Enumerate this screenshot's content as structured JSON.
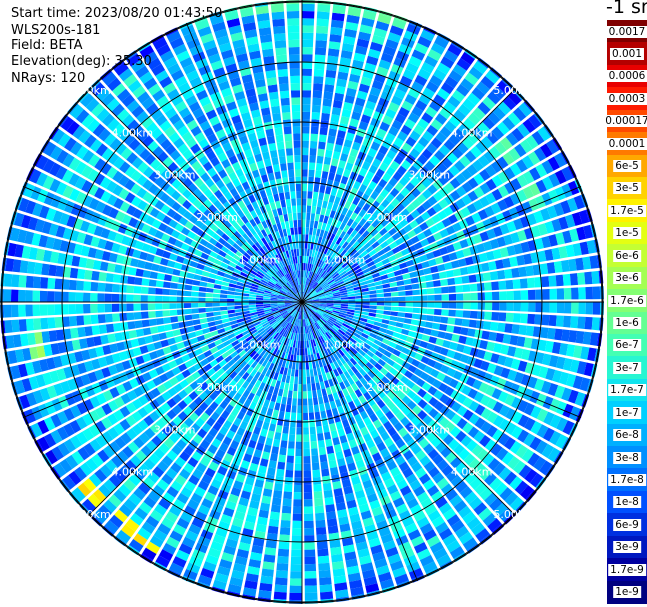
{
  "info": {
    "start_time": "Start time: 2023/08/20 01:43:50",
    "device": "WLS200s-181",
    "field": "Field: BETA",
    "elevation": "Elevation(deg): 35.30",
    "nrays": "NRays: 120"
  },
  "colorbar": {
    "title": "-1 sr",
    "levels": [
      {
        "label": "0.0017",
        "color": "#800000"
      },
      {
        "label": "0.001",
        "color": "#b40000"
      },
      {
        "label": "0.0006",
        "color": "#e80000"
      },
      {
        "label": "0.0003",
        "color": "#ff1a00"
      },
      {
        "label": "0.00017",
        "color": "#ff4a00"
      },
      {
        "label": "0.0001",
        "color": "#ff7a00"
      },
      {
        "label": "6e-5",
        "color": "#ffa800"
      },
      {
        "label": "3e-5",
        "color": "#ffd200"
      },
      {
        "label": "1.7e-5",
        "color": "#fff200"
      },
      {
        "label": "1e-5",
        "color": "#e4ff12"
      },
      {
        "label": "6e-6",
        "color": "#c4ff33"
      },
      {
        "label": "3e-6",
        "color": "#a4ff53"
      },
      {
        "label": "1.7e-6",
        "color": "#84ff73"
      },
      {
        "label": "1e-6",
        "color": "#64ff93"
      },
      {
        "label": "6e-7",
        "color": "#44ffb3"
      },
      {
        "label": "3e-7",
        "color": "#28f6d2"
      },
      {
        "label": "1.7e-7",
        "color": "#12e4ee"
      },
      {
        "label": "1e-7",
        "color": "#00d0ff"
      },
      {
        "label": "6e-8",
        "color": "#00b0ff"
      },
      {
        "label": "3e-8",
        "color": "#0090ff"
      },
      {
        "label": "1.7e-8",
        "color": "#0070ff"
      },
      {
        "label": "1e-8",
        "color": "#0050ff"
      },
      {
        "label": "6e-9",
        "color": "#0030e0"
      },
      {
        "label": "3e-9",
        "color": "#0018c0"
      },
      {
        "label": "1.7e-9",
        "color": "#0000a0"
      },
      {
        "label": "1e-9",
        "color": "#000080"
      }
    ]
  },
  "chart_data": {
    "type": "heatmap",
    "projection": "polar (PPI scan)",
    "n_rays": 120,
    "spokes_count": 16,
    "range_rings_km": [
      1,
      2,
      3,
      4,
      5
    ],
    "range_ring_labels": [
      "1.00km",
      "2.00km",
      "3.00km",
      "4.00km",
      "5.00km"
    ],
    "max_range_km": 5.4,
    "colorscale": "jet",
    "scale": "log",
    "zlim": [
      1e-09,
      0.0017
    ],
    "background_value": 1e-07,
    "notable_features": [
      {
        "range_km": 4.4,
        "azimuth_deg": [
          255,
          265
        ],
        "value": 1.7e-06
      },
      {
        "range_km": 4.7,
        "azimuth_deg": [
          210,
          230
        ],
        "value": 1e-05
      },
      {
        "range_km": 4.9,
        "azimuth_deg": [
          340,
          20
        ],
        "value": 6e-07
      },
      {
        "range_km": 4.2,
        "azimuth_deg": [
          50,
          70
        ],
        "value": 6e-07
      }
    ]
  }
}
